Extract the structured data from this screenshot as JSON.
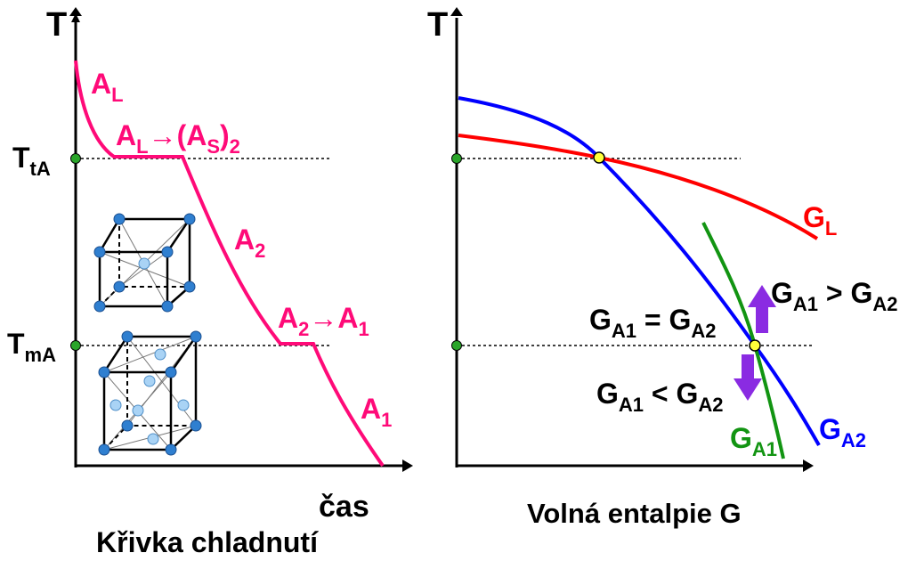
{
  "left": {
    "axis_y": "T",
    "axis_x": "čas",
    "caption": "Křivka chladnutí",
    "labels": [
      {
        "parts": [
          {
            "text": "T"
          },
          {
            "sub": "tA"
          }
        ]
      },
      {
        "parts": [
          {
            "text": "T"
          },
          {
            "sub": "mA"
          }
        ]
      },
      {
        "parts": [
          {
            "text": "A"
          },
          {
            "sub": "L"
          }
        ]
      },
      {
        "parts": [
          {
            "text": "A"
          },
          {
            "sub": "L"
          },
          {
            "text": "→(A"
          },
          {
            "sub": "S"
          },
          {
            "text": ")"
          },
          {
            "sub": "2"
          }
        ]
      },
      {
        "parts": [
          {
            "text": "A"
          },
          {
            "sub": "2"
          }
        ]
      },
      {
        "parts": [
          {
            "text": "A"
          },
          {
            "sub": "2"
          },
          {
            "text": "→A"
          },
          {
            "sub": "1"
          }
        ]
      },
      {
        "parts": [
          {
            "text": "A"
          },
          {
            "sub": "1"
          }
        ]
      }
    ]
  },
  "right": {
    "axis_y": "T",
    "axis_x": "Volná entalpie G",
    "labels": [
      {
        "parts": [
          {
            "text": "G"
          },
          {
            "sub": "L"
          }
        ]
      },
      {
        "parts": [
          {
            "text": "G"
          },
          {
            "sub": "A1"
          },
          {
            "text": " > G"
          },
          {
            "sub": "A2"
          }
        ]
      },
      {
        "parts": [
          {
            "text": "G"
          },
          {
            "sub": "A1"
          },
          {
            "text": " = G"
          },
          {
            "sub": "A2"
          }
        ]
      },
      {
        "parts": [
          {
            "text": "G"
          },
          {
            "sub": "A1"
          },
          {
            "text": " < G"
          },
          {
            "sub": "A2"
          }
        ]
      },
      {
        "parts": [
          {
            "text": "G"
          },
          {
            "sub": "A2"
          }
        ]
      },
      {
        "parts": [
          {
            "text": "G"
          },
          {
            "sub": "A1"
          }
        ]
      }
    ]
  }
}
